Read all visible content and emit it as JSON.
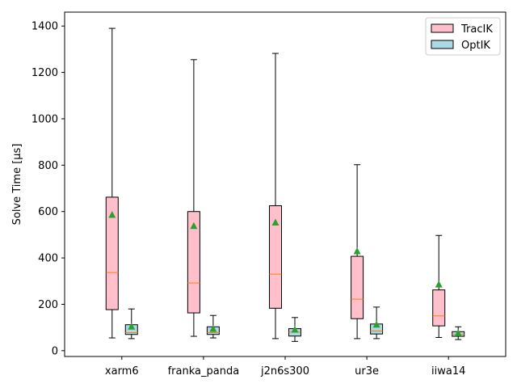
{
  "chart_data": {
    "type": "box",
    "title": "",
    "xlabel": "",
    "ylabel": "Solve Time [µs]",
    "ylim": [
      -25,
      1460
    ],
    "yticks": [
      0,
      200,
      400,
      600,
      800,
      1000,
      1200,
      1400
    ],
    "categories": [
      "xarm6",
      "franka_panda",
      "j2n6s300",
      "ur3e",
      "iiwa14"
    ],
    "legend_position": "top-right",
    "grid": false,
    "series": [
      {
        "name": "TracIK",
        "color": "#ffc0cb",
        "boxes": [
          {
            "whislo": 55,
            "q1": 177,
            "med": 337,
            "q3": 662,
            "whishi": 1390,
            "mean": 585
          },
          {
            "whislo": 62,
            "q1": 163,
            "med": 292,
            "q3": 600,
            "whishi": 1255,
            "mean": 537
          },
          {
            "whislo": 52,
            "q1": 183,
            "med": 330,
            "q3": 625,
            "whishi": 1282,
            "mean": 552
          },
          {
            "whislo": 52,
            "q1": 138,
            "med": 222,
            "q3": 407,
            "whishi": 802,
            "mean": 428
          },
          {
            "whislo": 57,
            "q1": 107,
            "med": 150,
            "q3": 262,
            "whishi": 497,
            "mean": 285
          }
        ]
      },
      {
        "name": "OptIK",
        "color": "#add8e6",
        "boxes": [
          {
            "whislo": 52,
            "q1": 70,
            "med": 78,
            "q3": 112,
            "whishi": 180,
            "mean": 103
          },
          {
            "whislo": 55,
            "q1": 70,
            "med": 78,
            "q3": 103,
            "whishi": 152,
            "mean": 93
          },
          {
            "whislo": 40,
            "q1": 63,
            "med": 80,
            "q3": 95,
            "whishi": 143,
            "mean": 90
          },
          {
            "whislo": 52,
            "q1": 72,
            "med": 85,
            "q3": 115,
            "whishi": 188,
            "mean": 112
          },
          {
            "whislo": 48,
            "q1": 62,
            "med": 70,
            "q3": 82,
            "whishi": 103,
            "mean": 75
          }
        ]
      }
    ],
    "median_color": "#ff7f0e",
    "mean_marker_color": "#2ca02c"
  }
}
